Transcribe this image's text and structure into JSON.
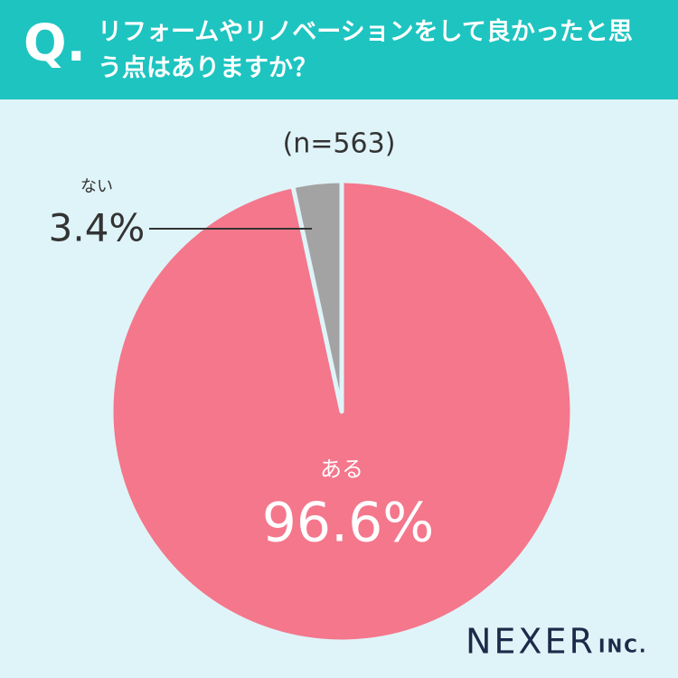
{
  "chart_data": {
    "type": "pie",
    "question_mark": "Q.",
    "title": "リフォームやリノベーションをして良かったと思う点はありますか？",
    "subtitle": "(n=563)",
    "categories": [
      "ある",
      "ない"
    ],
    "values": [
      96.6,
      3.4
    ],
    "value_labels": [
      "96.6%",
      "3.4%"
    ],
    "colors": [
      "#f4778c",
      "#a3a3a3"
    ],
    "brand": "NEXER",
    "brand_suffix": "INC."
  }
}
